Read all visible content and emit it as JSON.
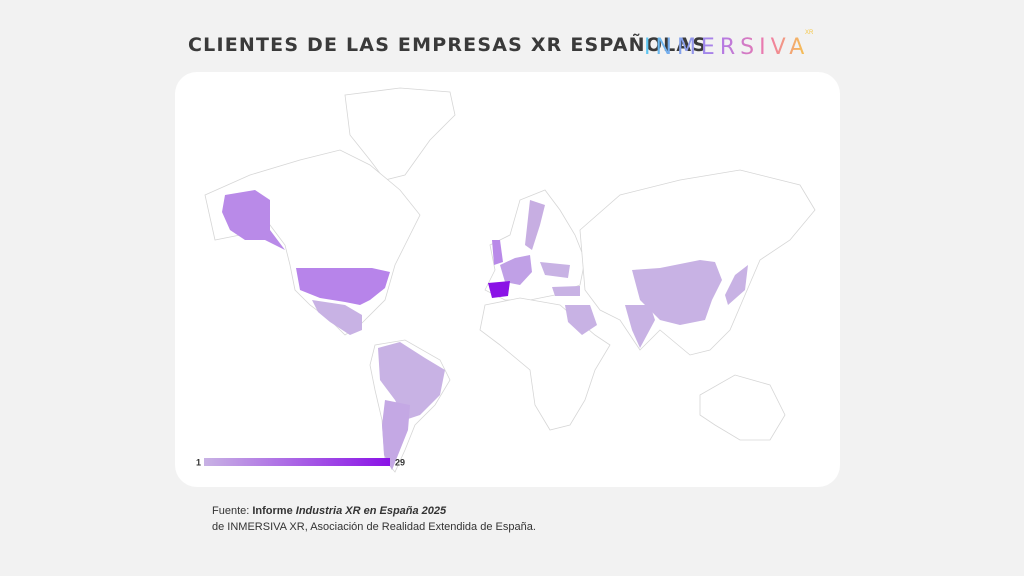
{
  "header": {
    "title": "CLIENTES DE LAS EMPRESAS XR ESPAÑOLAS",
    "logo": "INMERSIVA",
    "logo_badge": "XR"
  },
  "legend": {
    "min": 1,
    "max": 29,
    "colors": [
      "#c8b2e4",
      "#8a12e6"
    ]
  },
  "source": {
    "prefix": "Fuente: ",
    "bold": "Informe ",
    "bold_italic": "Industria XR en España 2025",
    "line2": "de INMERSIVA XR, Asociación de Realidad Extendida de España."
  }
}
